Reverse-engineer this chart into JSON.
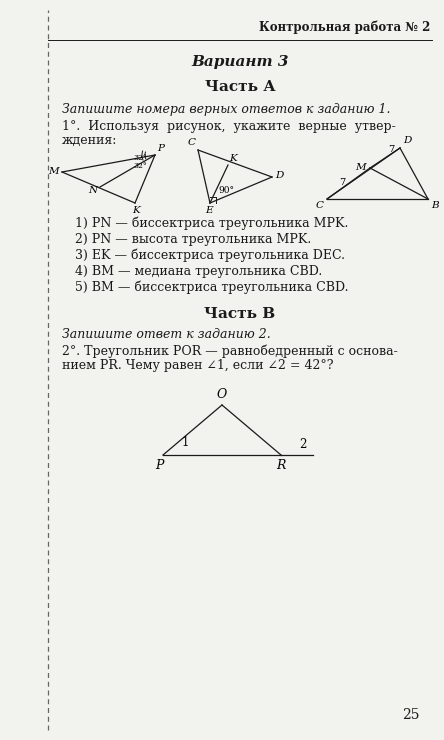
{
  "header": "Контрольная работа № 2",
  "variant": "Вариант 3",
  "part_a": "Часть А",
  "part_b": "Часть В",
  "italic_instruction1": "Запишите номера верных ответов к заданию 1.",
  "italic_instruction2": "Запишите ответ к заданию 2.",
  "task1_line1": "1°.  Используя  рисунок,  укажите  верные  утвер-",
  "task1_line2": "ждения:",
  "task2_line1": "2°. Треугольник POR — равнобедренный с основа-",
  "task2_line2": "нием PR. Чему равен ∠1, если ∠2 = 42°?",
  "answers": [
    "1) PN — биссектриса треугольника MPK.",
    "2) PN — высота треугольника MPK.",
    "3) EK — биссектриса треугольника DEC.",
    "4) BM — медиана треугольника CBD.",
    "5) BM — биссектриса треугольника CBD."
  ],
  "page_number": "25",
  "bg_color": "#f2f2ee",
  "line_color": "#1a1a1a",
  "dashed_line_color": "#666666"
}
